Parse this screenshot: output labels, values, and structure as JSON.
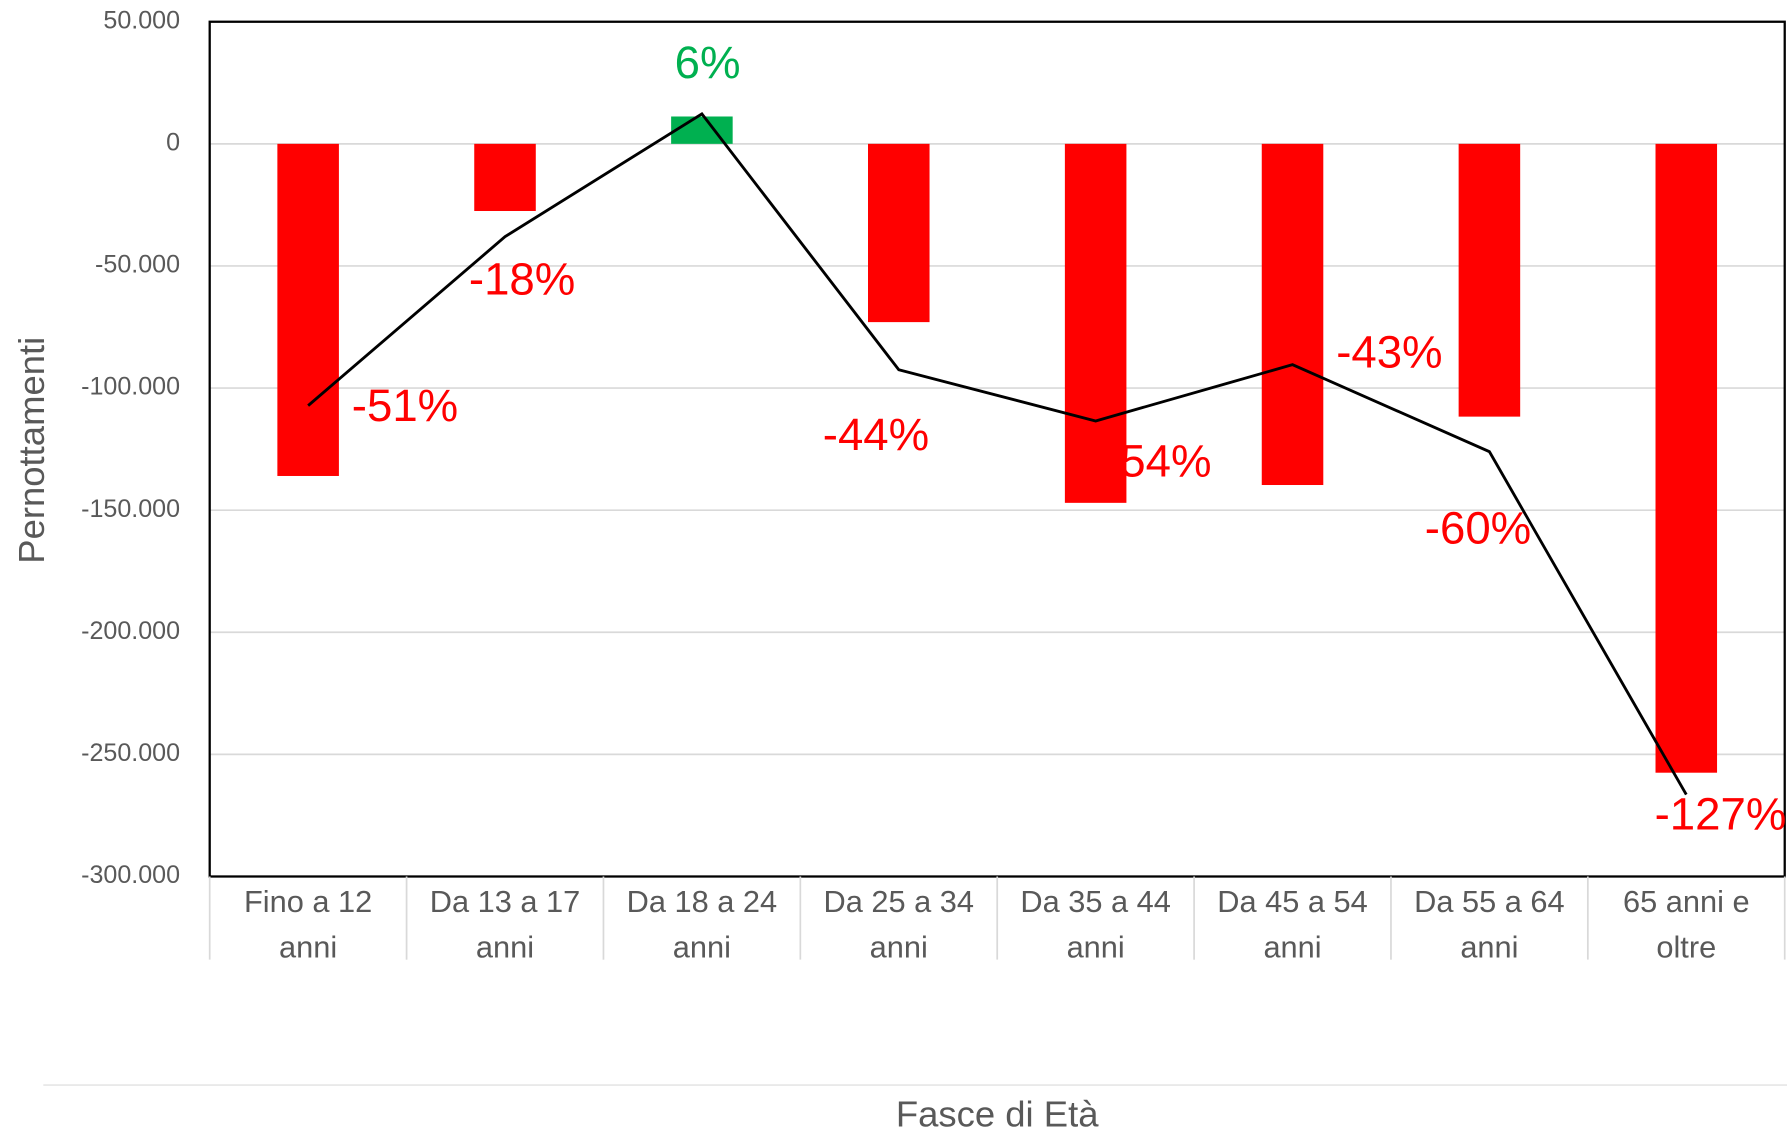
{
  "chart_data": {
    "type": "bar",
    "categories": [
      "Fino a 12 anni",
      "Da 13 a 17 anni",
      "Da 18 a 24 anni",
      "Da 25 a 34 anni",
      "Da 35 a 44 anni",
      "Da 45 a 54 anni",
      "Da 55 a 64 anni",
      "65 anni e oltre"
    ],
    "series": [
      {
        "values": [
          -136000,
          -27500,
          11200,
          -73000,
          -147000,
          -139700,
          -111700,
          -257500
        ],
        "colors": [
          "#ff0000",
          "#ff0000",
          "#00b050",
          "#ff0000",
          "#ff0000",
          "#ff0000",
          "#ff0000",
          "#ff0000"
        ]
      },
      {
        "type": "line",
        "axis": "y2",
        "color": "#000000",
        "values": [
          -51,
          -18,
          6,
          -44,
          -54,
          -43,
          -60,
          -127
        ],
        "value_labels": [
          "-51%",
          "-18%",
          "6%",
          "-44%",
          "-54%",
          "-43%",
          "-60%",
          "-127%"
        ]
      }
    ],
    "ylim": [
      -300000,
      50000
    ],
    "yticks": [
      {
        "value": -300000,
        "label": "-300.000"
      },
      {
        "value": -250000,
        "label": "-250.000"
      },
      {
        "value": -200000,
        "label": "-200.000"
      },
      {
        "value": -150000,
        "label": "-150.000"
      },
      {
        "value": -100000,
        "label": "-100.000"
      },
      {
        "value": -50000,
        "label": "-50.000"
      },
      0,
      {
        "value": 50000,
        "label": "50.000"
      }
    ],
    "y2lim": [
      -143,
      24
    ],
    "ylabel": "Pernottamenti",
    "xlabel": "Fasce di Età",
    "grid": true
  }
}
